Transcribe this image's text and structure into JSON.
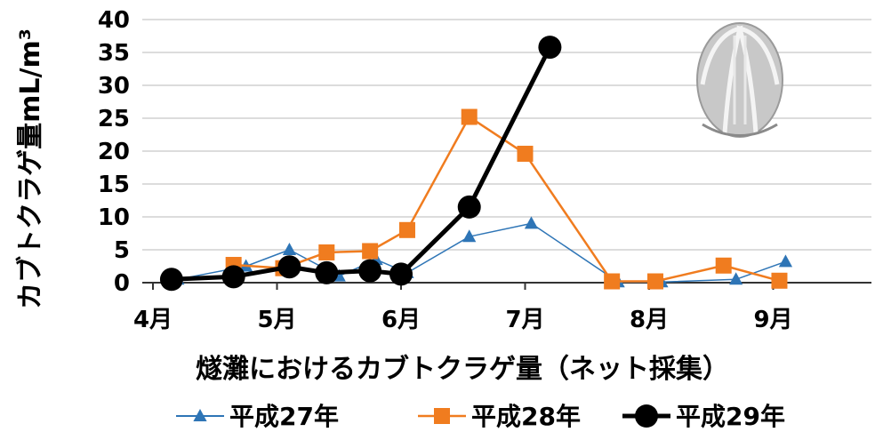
{
  "chart_data": {
    "type": "line",
    "xlabel": "燧灘におけるカブトクラゲ量（ネット採集）",
    "ylabel": "カブトクラゲ量mL/m³",
    "ylim": [
      0,
      40
    ],
    "y_ticks": [
      0,
      5,
      10,
      15,
      20,
      25,
      30,
      35,
      40
    ],
    "x_ticks": [
      "4月",
      "5月",
      "6月",
      "7月",
      "8月",
      "9月"
    ],
    "grid": "horizontal",
    "legend_position": "bottom",
    "series": [
      {
        "name": "平成27年",
        "color": "#2e75b6",
        "marker": "triangle",
        "x": [
          4.2,
          4.75,
          5.1,
          5.5,
          5.8,
          6.05,
          6.55,
          7.05,
          7.75,
          8.1,
          8.7,
          9.1
        ],
        "values": [
          0.5,
          2.5,
          5.0,
          1.0,
          3.5,
          1.5,
          7.0,
          9.0,
          0.1,
          0.1,
          0.5,
          3.2
        ]
      },
      {
        "name": "平成28年",
        "color": "#f07c1f",
        "marker": "square",
        "x": [
          4.65,
          5.05,
          5.4,
          5.75,
          6.05,
          6.55,
          7.0,
          7.7,
          8.05,
          8.6,
          9.05
        ],
        "values": [
          2.7,
          2.2,
          4.6,
          4.8,
          8.0,
          25.2,
          19.6,
          0.2,
          0.2,
          2.6,
          0.3
        ]
      },
      {
        "name": "平成29年",
        "color": "#000000",
        "marker": "circle",
        "x": [
          4.15,
          4.65,
          5.1,
          5.4,
          5.75,
          6.0,
          6.55,
          7.2
        ],
        "values": [
          0.5,
          0.9,
          2.4,
          1.5,
          1.8,
          1.3,
          11.5,
          35.8
        ]
      }
    ]
  }
}
